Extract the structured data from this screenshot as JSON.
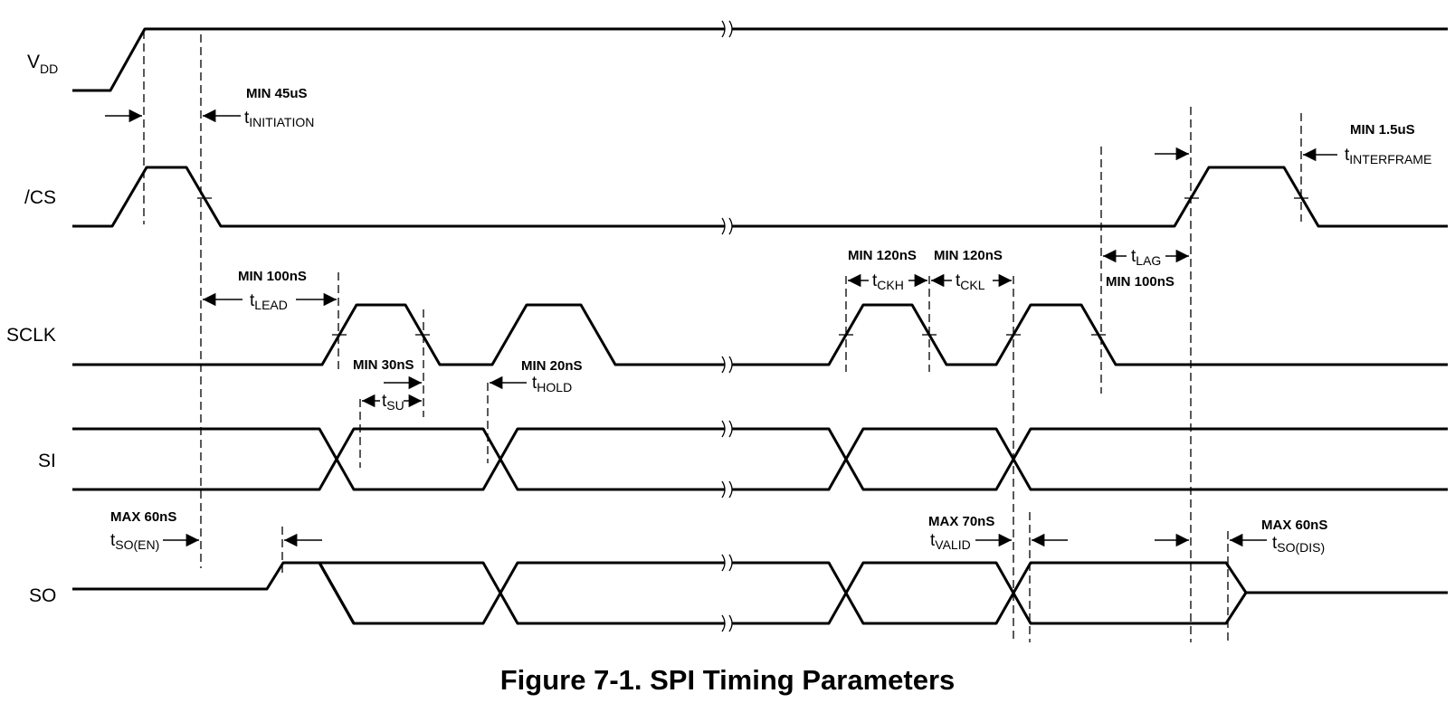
{
  "caption": "Figure 7-1. SPI Timing Parameters",
  "signals": {
    "vdd": {
      "main": "V",
      "sub": "DD"
    },
    "cs": "/CS",
    "sclk": "SCLK",
    "si": "SI",
    "so": "SO"
  },
  "params": {
    "initiation": {
      "limit": "MIN 45uS",
      "main": "t",
      "sub": "INITIATION"
    },
    "interframe": {
      "limit": "MIN 1.5uS",
      "main": "t",
      "sub": "INTERFRAME"
    },
    "lead": {
      "limit": "MIN 100nS",
      "main": "t",
      "sub": "LEAD"
    },
    "ckh": {
      "limit": "MIN 120nS",
      "main": "t",
      "sub": "CKH"
    },
    "ckl": {
      "limit": "MIN 120nS",
      "main": "t",
      "sub": "CKL"
    },
    "lag": {
      "limit": "MIN 100nS",
      "main": "t",
      "sub": "LAG"
    },
    "su": {
      "limit": "MIN 30nS",
      "main": "t",
      "sub": "SU"
    },
    "hold": {
      "limit": "MIN 20nS",
      "main": "t",
      "sub": "HOLD"
    },
    "so_en": {
      "limit": "MAX 60nS",
      "main": "t",
      "sub": "SO(EN)"
    },
    "valid": {
      "limit": "MAX 70nS",
      "main": "t",
      "sub": "VALID"
    },
    "so_dis": {
      "limit": "MAX 60nS",
      "main": "t",
      "sub": "SO(DIS)"
    }
  }
}
